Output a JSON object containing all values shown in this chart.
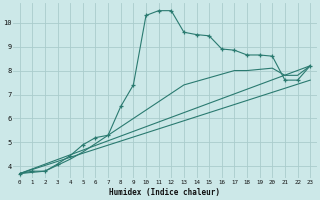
{
  "xlabel": "Humidex (Indice chaleur)",
  "bg_color": "#cce8e8",
  "grid_color": "#aacccc",
  "line_color": "#2a7a70",
  "xlim": [
    -0.5,
    23.5
  ],
  "ylim": [
    3.5,
    10.8
  ],
  "xticks": [
    0,
    1,
    2,
    3,
    4,
    5,
    6,
    7,
    8,
    9,
    10,
    11,
    12,
    13,
    14,
    15,
    16,
    17,
    18,
    19,
    20,
    21,
    22,
    23
  ],
  "yticks": [
    4,
    5,
    6,
    7,
    8,
    9,
    10
  ],
  "series1_x": [
    0,
    1,
    2,
    3,
    4,
    5,
    6,
    7,
    8,
    9,
    10,
    11,
    12,
    13,
    14,
    15,
    16,
    17,
    18,
    19,
    20,
    21,
    22,
    23
  ],
  "series1_y": [
    3.7,
    3.8,
    3.8,
    4.1,
    4.45,
    4.9,
    5.2,
    5.3,
    6.5,
    7.4,
    10.3,
    10.5,
    10.5,
    9.6,
    9.5,
    9.45,
    8.9,
    8.85,
    8.65,
    8.65,
    8.6,
    7.6,
    7.6,
    8.2
  ],
  "series2_x": [
    0,
    1,
    2,
    3,
    4,
    5,
    6,
    7,
    8,
    9,
    10,
    11,
    12,
    13,
    14,
    15,
    16,
    17,
    18,
    19,
    20,
    21,
    22,
    23
  ],
  "series2_y": [
    3.7,
    3.75,
    3.8,
    4.05,
    4.3,
    4.6,
    4.95,
    5.3,
    5.65,
    6.0,
    6.35,
    6.7,
    7.05,
    7.4,
    7.55,
    7.7,
    7.85,
    8.0,
    8.0,
    8.05,
    8.1,
    7.8,
    7.8,
    8.2
  ],
  "series3_x": [
    0,
    23
  ],
  "series3_y": [
    3.7,
    8.2
  ],
  "series4_x": [
    0,
    23
  ],
  "series4_y": [
    3.7,
    7.6
  ]
}
